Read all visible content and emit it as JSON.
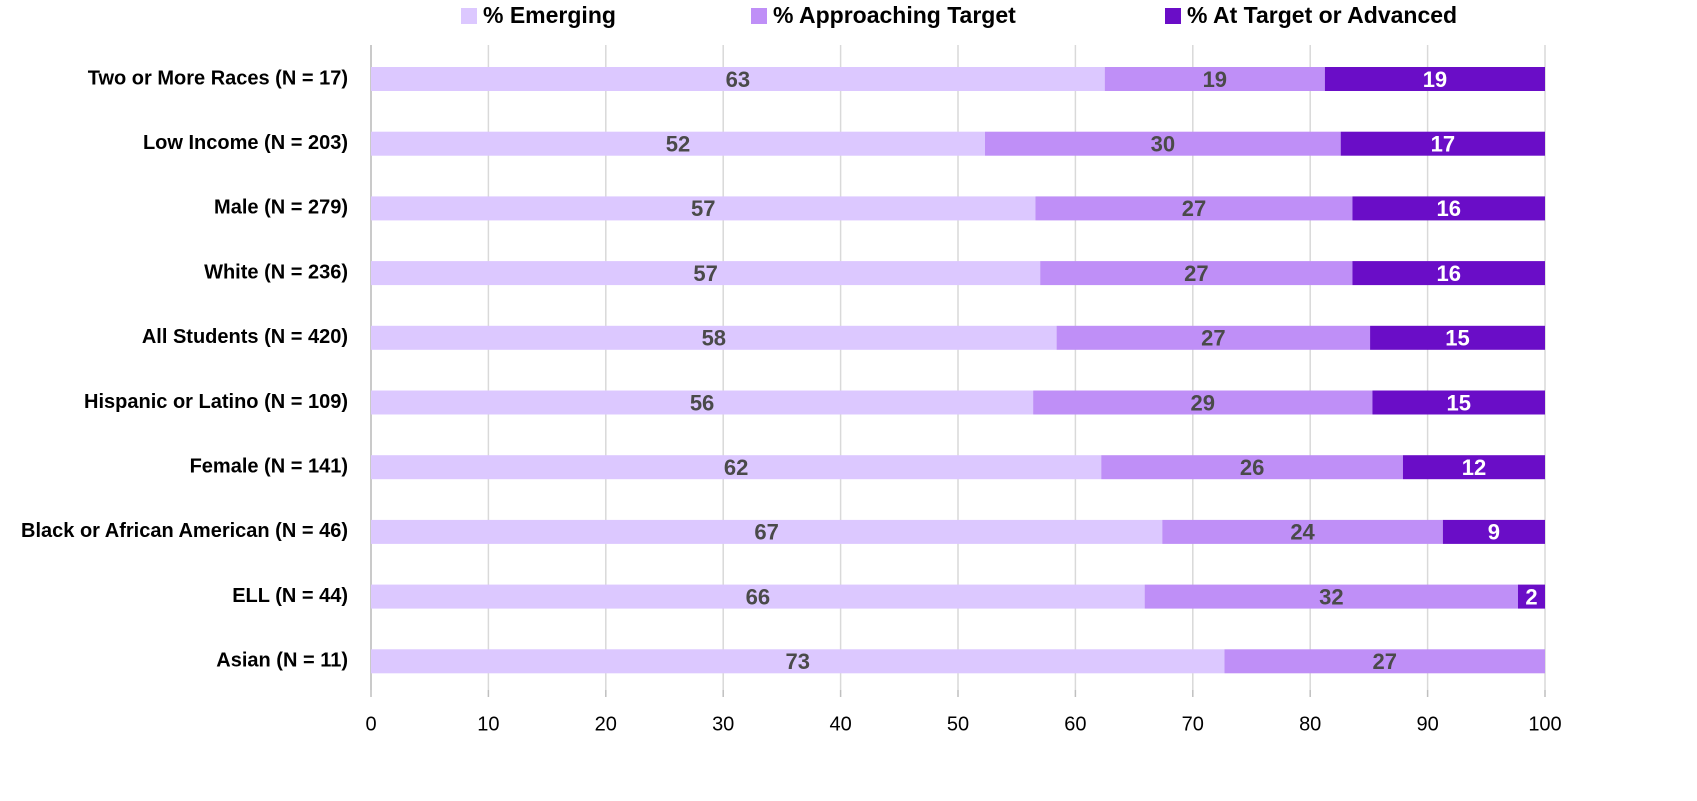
{
  "chart_data": {
    "type": "stacked-bar-horizontal",
    "categories": [
      "Two or More Races (N = 17)",
      "Low Income (N = 203)",
      "Male (N = 279)",
      "White (N = 236)",
      "All Students (N = 420)",
      "Hispanic or Latino (N = 109)",
      "Female (N = 141)",
      "Black or African American (N = 46)",
      "ELL (N = 44)",
      "Asian (N = 11)"
    ],
    "series": [
      {
        "name": "% Emerging",
        "color": "#dcc8ff",
        "label_color": "#4a4a4a",
        "values": [
          62.5,
          52.3,
          56.6,
          57.0,
          58.4,
          56.4,
          62.2,
          67.4,
          65.9,
          72.7
        ],
        "value_labels": [
          "63",
          "52",
          "57",
          "57",
          "58",
          "56",
          "62",
          "67",
          "66",
          "73"
        ]
      },
      {
        "name": "% Approaching Target",
        "color": "#bf8ff7",
        "label_color": "#4a4a4a",
        "values": [
          18.75,
          30.3,
          27.0,
          26.6,
          26.7,
          28.9,
          25.7,
          23.9,
          31.8,
          27.3
        ],
        "value_labels": [
          "19",
          "30",
          "27",
          "27",
          "27",
          "29",
          "26",
          "24",
          "32",
          "27"
        ]
      },
      {
        "name": "% At Target or Advanced",
        "color": "#6a0dc7",
        "label_color": "#ffffff",
        "values": [
          18.75,
          17.4,
          16.4,
          16.4,
          14.9,
          14.7,
          12.1,
          8.7,
          2.3,
          null
        ],
        "value_labels": [
          "19",
          "17",
          "16",
          "16",
          "15",
          "15",
          "12",
          "9",
          "2",
          null
        ]
      }
    ],
    "xlim": [
      0,
      100
    ],
    "xticks": [
      0,
      10,
      20,
      30,
      40,
      50,
      60,
      70,
      80,
      90,
      100
    ],
    "grid": true,
    "legend": "top"
  }
}
